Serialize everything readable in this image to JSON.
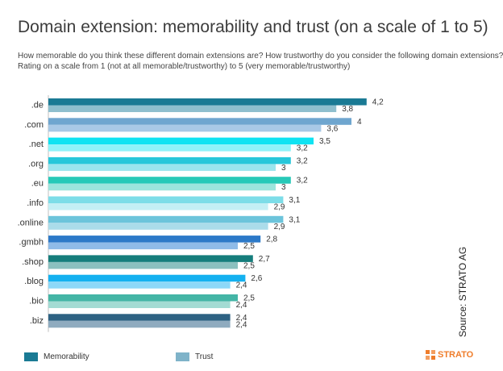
{
  "title": "Domain extension: memorability and trust (on a scale of 1 to 5)",
  "subtitle_lines": [
    "How memorable do you think these different domain extensions are? How trustworthy do you consider the following domain extensions?",
    "Rating on a scale from 1 (not at all memorable/trustworthy) to 5 (very memorable/trustworthy)"
  ],
  "source": "Source: STRATO  AG",
  "logo_text": "STRATO",
  "logo_color": "#ef7d2b",
  "chart_data": {
    "type": "bar",
    "orientation": "horizontal",
    "categories": [
      ".de",
      ".com",
      ".net",
      ".org",
      ".eu",
      ".info",
      ".online",
      ".gmbh",
      ".shop",
      ".blog",
      ".bio",
      ".biz"
    ],
    "series": [
      {
        "name": "Memorability",
        "values": [
          4.2,
          4,
          3.5,
          3.2,
          3.2,
          3.1,
          3.1,
          2.8,
          2.7,
          2.6,
          2.5,
          2.4
        ],
        "value_labels": [
          "4,2",
          "4",
          "3,5",
          "3,2",
          "3,2",
          "3,1",
          "3,1",
          "2,8",
          "2,7",
          "2,6",
          "2,5",
          "2,4"
        ],
        "colors": [
          "#1a7a94",
          "#6fa6cf",
          "#0fe3f2",
          "#27c7da",
          "#27c9b8",
          "#7ddde8",
          "#6cc4db",
          "#2c79c8",
          "#157d7c",
          "#14b1f0",
          "#44b5a6",
          "#2e6283"
        ]
      },
      {
        "name": "Trust",
        "values": [
          3.8,
          3.6,
          3.2,
          3,
          3,
          2.9,
          2.9,
          2.5,
          2.5,
          2.4,
          2.4,
          2.4
        ],
        "value_labels": [
          "3,8",
          "3,6",
          "3,2",
          "3",
          "3",
          "2,9",
          "2,9",
          "2,5",
          "2,5",
          "2,4",
          "2,4",
          "2,4"
        ],
        "colors": [
          "#8fbfce",
          "#a9c9e6",
          "#8ff3f9",
          "#9be5ee",
          "#9de5dd",
          "#c4eff5",
          "#abdcea",
          "#8fbbe8",
          "#8bc0bf",
          "#8dd8f8",
          "#a3dbd3",
          "#8fabbf"
        ]
      }
    ],
    "legend_colors": [
      "#1a7a94",
      "#7fb3c9"
    ],
    "legend_position": "bottom-left",
    "xlim": [
      0,
      5
    ],
    "grid": false
  }
}
